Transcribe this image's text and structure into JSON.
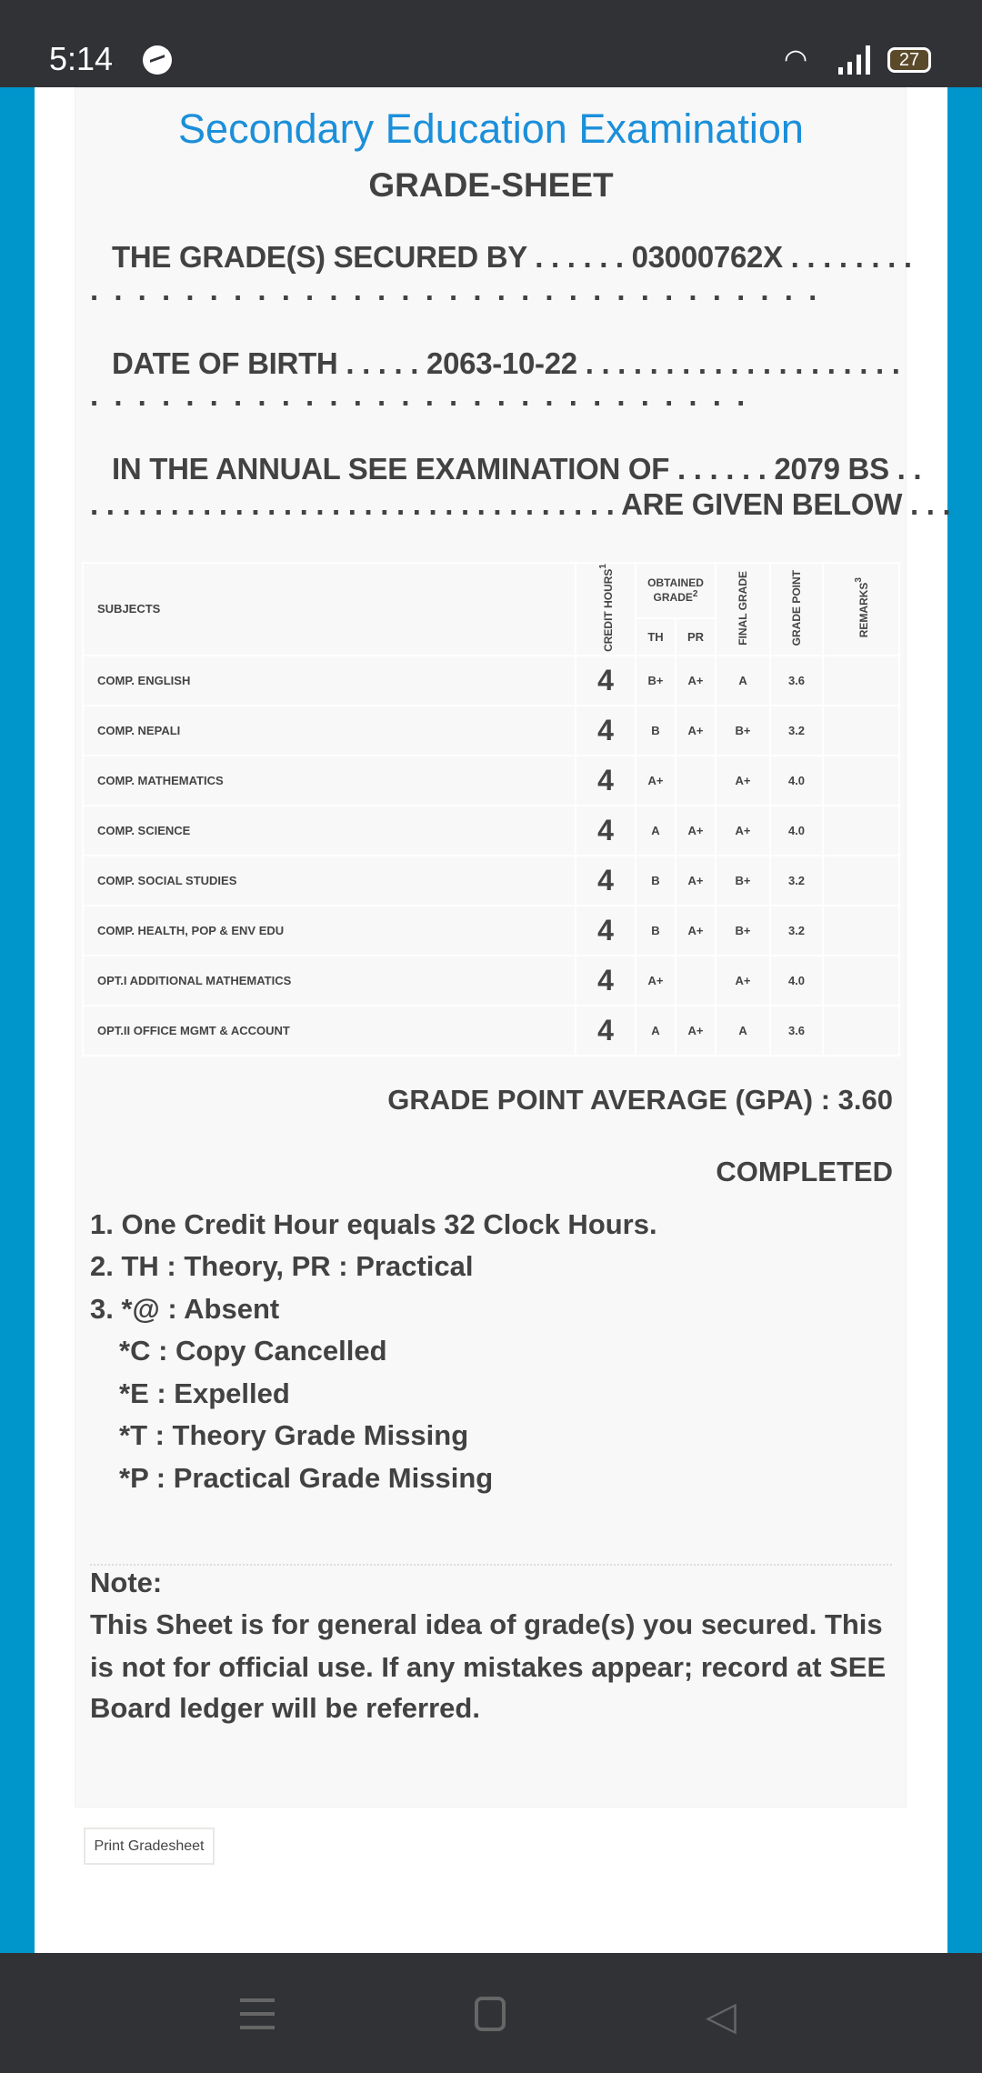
{
  "status_bar": {
    "time": "5:14",
    "battery": "27",
    "icons": [
      "messenger-icon",
      "wifi-icon",
      "signal-icon",
      "battery-icon"
    ]
  },
  "header": {
    "title": "Secondary Education Examination",
    "subtitle": "GRADE-SHEET"
  },
  "info": {
    "secured_by_label": "THE GRADE(S) SECURED BY",
    "symbol_no": "03000762X",
    "dob_label": "DATE OF BIRTH",
    "dob": "2063-10-22",
    "exam_label": "IN THE ANNUAL SEE EXAMINATION OF",
    "exam_year": "2079 BS",
    "given_below": "ARE GIVEN BELOW"
  },
  "table": {
    "headers": {
      "subjects": "SUBJECTS",
      "credit_hours": "CREDIT HOURS",
      "credit_sup": "1",
      "obtained_grade": "OBTAINED GRADE",
      "obtained_sup": "2",
      "th": "TH",
      "pr": "PR",
      "final_grade": "FINAL GRADE",
      "grade_point": "GRADE POINT",
      "remarks": "REMARKS",
      "remarks_sup": "3"
    },
    "rows": [
      {
        "subject": "COMP. ENGLISH",
        "credit": "4",
        "th": "B+",
        "pr": "A+",
        "final": "A",
        "point": "3.6",
        "remarks": ""
      },
      {
        "subject": "COMP. NEPALI",
        "credit": "4",
        "th": "B",
        "pr": "A+",
        "final": "B+",
        "point": "3.2",
        "remarks": ""
      },
      {
        "subject": "COMP. MATHEMATICS",
        "credit": "4",
        "th": "A+",
        "pr": "",
        "final": "A+",
        "point": "4.0",
        "remarks": ""
      },
      {
        "subject": "COMP. SCIENCE",
        "credit": "4",
        "th": "A",
        "pr": "A+",
        "final": "A+",
        "point": "4.0",
        "remarks": ""
      },
      {
        "subject": "COMP. SOCIAL STUDIES",
        "credit": "4",
        "th": "B",
        "pr": "A+",
        "final": "B+",
        "point": "3.2",
        "remarks": ""
      },
      {
        "subject": "COMP. HEALTH, POP & ENV EDU",
        "credit": "4",
        "th": "B",
        "pr": "A+",
        "final": "B+",
        "point": "3.2",
        "remarks": ""
      },
      {
        "subject": "OPT.I ADDITIONAL MATHEMATICS",
        "credit": "4",
        "th": "A+",
        "pr": "",
        "final": "A+",
        "point": "4.0",
        "remarks": ""
      },
      {
        "subject": "OPT.II OFFICE MGMT & ACCOUNT",
        "credit": "4",
        "th": "A",
        "pr": "A+",
        "final": "A",
        "point": "3.6",
        "remarks": ""
      }
    ]
  },
  "summary": {
    "gpa": "GRADE POINT AVERAGE (GPA) : 3.60",
    "status": "COMPLETED"
  },
  "footnotes": [
    "1. One Credit Hour equals 32 Clock Hours.",
    "2. TH : Theory, PR : Practical",
    "3. *@ : Absent",
    "*C : Copy Cancelled",
    "*E : Expelled",
    "*T : Theory Grade Missing",
    "*P : Practical Grade Missing"
  ],
  "note": {
    "heading": "Note:",
    "lines": [
      "This Sheet is for general idea of grade(s) you secured. This",
      "is not for official use. If any mistakes appear; record at SEE",
      "Board ledger will be referred."
    ]
  },
  "print_button": "Print Gradesheet",
  "colors": {
    "title": "#1b8fd9",
    "frame": "#0096cc",
    "system_bars": "#313236"
  }
}
